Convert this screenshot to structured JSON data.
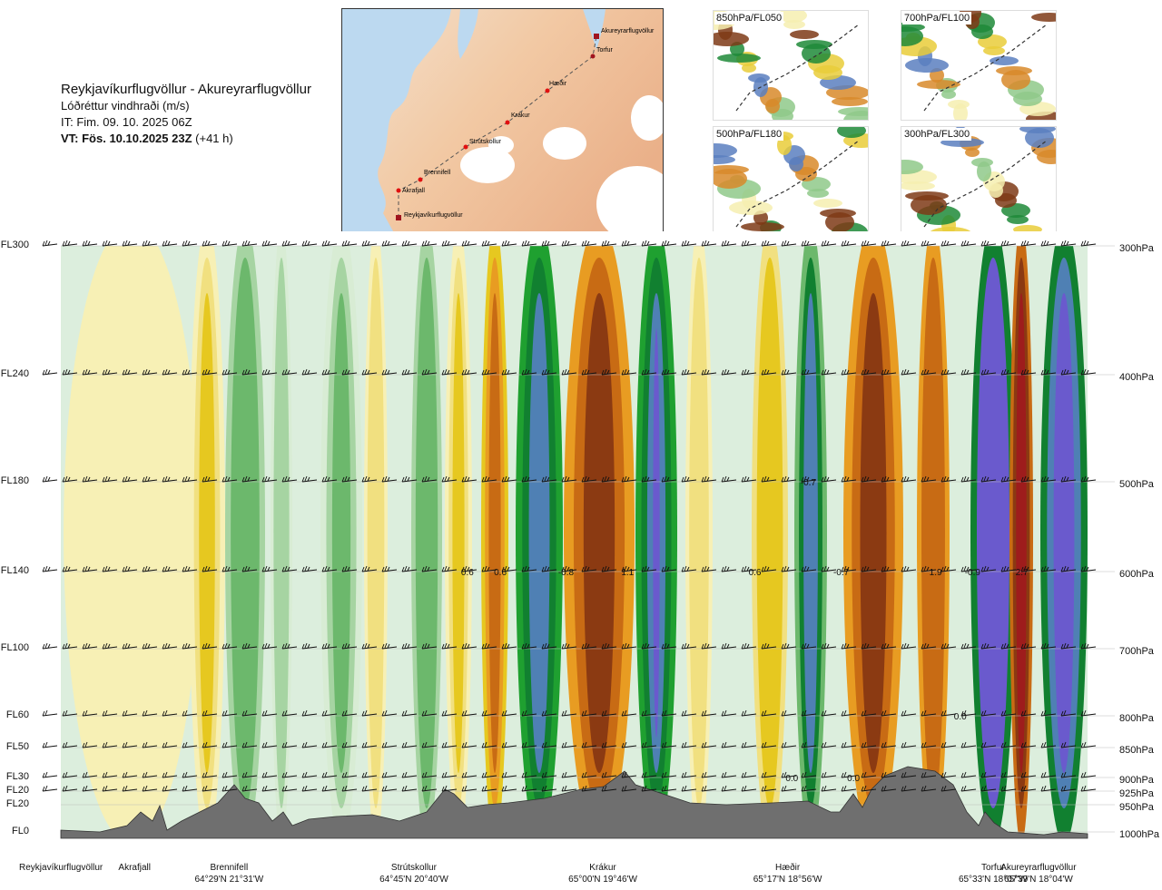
{
  "header": {
    "route_title": "Reykjavíkurflugvöllur - Akureyrarflugvöllur",
    "parameter": "Lóðréttur vindhraði (m/s)",
    "issue_time": "IT: Fim. 09. 10. 2025 06Z",
    "valid_time_label": "VT: Fös. 10.10.2025 23Z",
    "lead_time": "(+41 h)"
  },
  "map": {
    "points": [
      {
        "name": "Reykjavíkurflugvöllur",
        "end": true
      },
      {
        "name": "Akrafjall"
      },
      {
        "name": "Brennifell"
      },
      {
        "name": "Strútskollur"
      },
      {
        "name": "Krákur"
      },
      {
        "name": "Hæðir"
      },
      {
        "name": "Torfur"
      },
      {
        "name": "Akureyrarflugvöllur",
        "end": true
      }
    ]
  },
  "thumbnails": [
    {
      "label": "850hPa/FL050"
    },
    {
      "label": "700hPa/FL100"
    },
    {
      "label": "500hPa/FL180"
    },
    {
      "label": "300hPa/FL300"
    }
  ],
  "chart_data": {
    "type": "heatmap",
    "title": "Reykjavíkurflugvöllur - Akureyrarflugvöllur",
    "left_axis": [
      "FL300",
      "FL240",
      "FL180",
      "FL140",
      "FL100",
      "FL60",
      "FL50",
      "FL30",
      "FL20",
      "FL20",
      "FL0"
    ],
    "right_axis": [
      "300hPa",
      "400hPa",
      "500hPa",
      "600hPa",
      "700hPa",
      "800hPa",
      "850hPa",
      "900hPa",
      "925hPa",
      "950hPa",
      "1000hPa"
    ],
    "pressure_levels_hpa": [
      300,
      400,
      500,
      600,
      700,
      800,
      850,
      900,
      925,
      950,
      1000
    ],
    "x_range_km": [
      0,
      250
    ],
    "y_range_hpa": [
      1000,
      300
    ],
    "waypoints": [
      {
        "name": "Reykjavíkurflugvöllur",
        "coord": "",
        "km": 0
      },
      {
        "name": "Akrafjall",
        "coord": "",
        "km": 18
      },
      {
        "name": "Brennifell",
        "coord": "64°29'N 21°31'W",
        "km": 41
      },
      {
        "name": "Strútskollur",
        "coord": "64°45'N 20°40'W",
        "km": 86
      },
      {
        "name": "Krákur",
        "coord": "65°00'N 19°46'W",
        "km": 132
      },
      {
        "name": "Hæðir",
        "coord": "65°17'N 18°56'W",
        "km": 177
      },
      {
        "name": "Torfur",
        "coord": "65°33'N 18°07'W",
        "km": 227
      },
      {
        "name": "Akureyrarflugvöllur",
        "coord": "65°39'N 18°04'W",
        "km": 238
      }
    ],
    "value_labels": [
      {
        "text": "0.6",
        "km": 99,
        "hpa": 600
      },
      {
        "text": "0.6",
        "km": 107,
        "hpa": 600
      },
      {
        "text": "-0.8",
        "km": 123,
        "hpa": 600
      },
      {
        "text": "1.1",
        "km": 138,
        "hpa": 600
      },
      {
        "text": "0.6",
        "km": 169,
        "hpa": 600
      },
      {
        "text": "-0.7",
        "km": 190,
        "hpa": 600
      },
      {
        "text": "1.9",
        "km": 213,
        "hpa": 600
      },
      {
        "text": "-0.9",
        "km": 222,
        "hpa": 600
      },
      {
        "text": "2.7",
        "km": 234,
        "hpa": 600
      },
      {
        "text": "-0.7",
        "km": 182,
        "hpa": 500
      },
      {
        "text": "0.0",
        "km": 219,
        "hpa": 800
      },
      {
        "text": "0.0",
        "km": 178,
        "hpa": 900
      },
      {
        "text": "0.0",
        "km": 193,
        "hpa": 900
      }
    ]
  }
}
